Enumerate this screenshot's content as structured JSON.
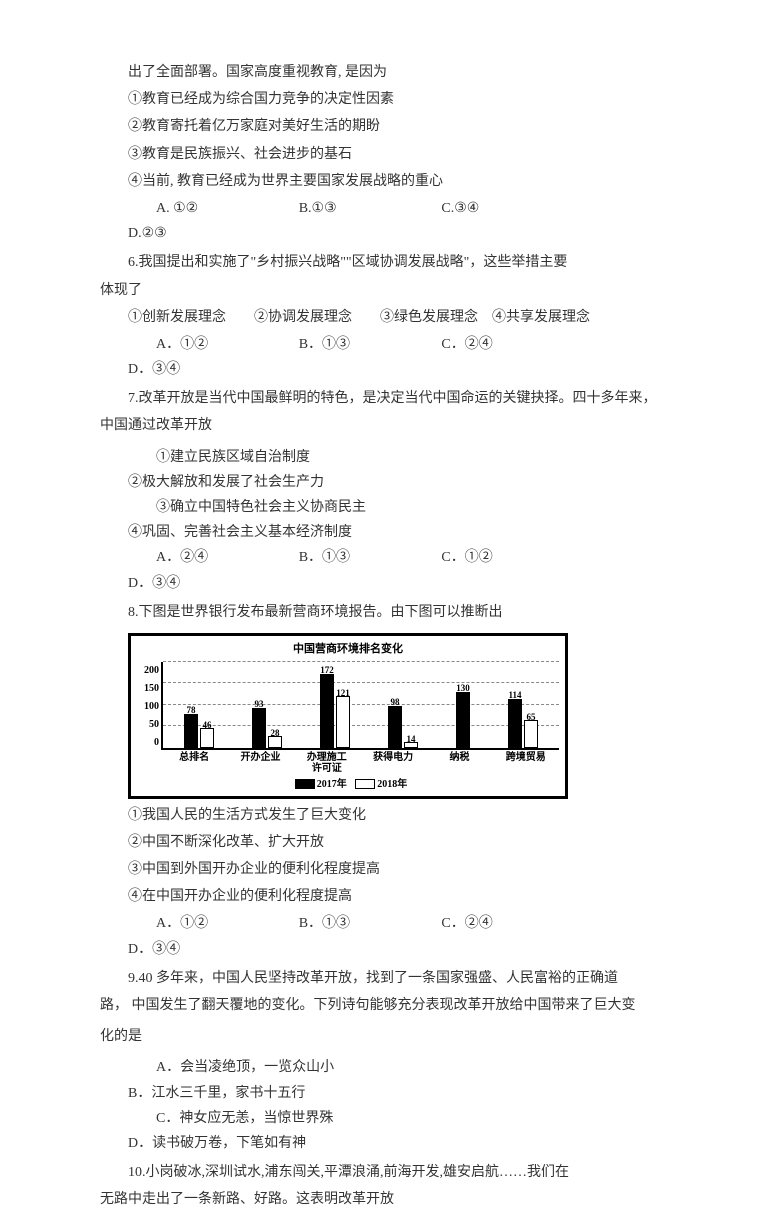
{
  "intro_tail": "出了全面部署。国家高度重视教育, 是因为",
  "q5": {
    "s1": "①教育已经成为综合国力竞争的决定性因素",
    "s2": "②教育寄托着亿万家庭对美好生活的期盼",
    "s3": "③教育是民族振兴、社会进步的基石",
    "s4": "④当前, 教育已经成为世界主要国家发展战略的重心",
    "optA": "A. ①②",
    "optB": "B.①③",
    "optC": "C.③④",
    "optD": "D.②③"
  },
  "q6": {
    "stem1": "6.我国提出和实施了\"乡村振兴战略\"\"区域协调发展战略\"，这些举措主要",
    "stem2": "体现了",
    "stmts": "①创新发展理念　　②协调发展理念　　③绿色发展理念　④共享发展理念",
    "optA": "A．①②",
    "optB": "B．①③",
    "optC": "C．②④",
    "optD": "D．③④"
  },
  "q7": {
    "stem1": "7.改革开放是当代中国最鲜明的特色，是决定当代中国命运的关键抉择。四十多年来，",
    "stem2": "中国通过改革开放",
    "row1L": "①建立民族区域自治制度",
    "row1R": "②极大解放和发展了社会生产力",
    "row2L": "③确立中国特色社会主义协商民主",
    "row2R": "④巩固、完善社会主义基本经济制度",
    "optA": "A．②④",
    "optB": "B．①③",
    "optC": "C．①②",
    "optD": "D．③④"
  },
  "q8": {
    "stem": "8.下图是世界银行发布最新营商环境报告。由下图可以推断出",
    "s1": "①我国人民的生活方式发生了巨大变化",
    "s2": "②中国不断深化改革、扩大开放",
    "s3": "③中国到外国开办企业的便利化程度提高",
    "s4": "④在中国开办企业的便利化程度提高",
    "optA": "A．①②",
    "optB": "B．①③",
    "optC": "C．②④",
    "optD": "D．③④"
  },
  "q9": {
    "stem1": "9.40 多年来，中国人民坚持改革开放，找到了一条国家强盛、人民富裕的正确道",
    "stem2": "路， 中国发生了翻天覆地的变化。下列诗句能够充分表现改革开放给中国带来了巨大变",
    "stem3": "化的是",
    "optA": "A．会当凌绝顶，一览众山小",
    "optB": "B．江水三千里，家书十五行",
    "optC": "C．神女应无恙，当惊世界殊",
    "optD": "D．读书破万卷，下笔如有神"
  },
  "q10": {
    "stem1": "10.小岗破冰,深圳试水,浦东闯关,平潭浪涌,前海开发,雄安启航……我们在",
    "stem2": "无路中走出了一条新路、好路。这表明改革开放"
  },
  "chart": {
    "title": "中国营商环境排名变化",
    "type": "bar",
    "ylim_max": 200,
    "ytick_step": 50,
    "yticks": [
      "200",
      "150",
      "100",
      "50",
      "0"
    ],
    "categories": [
      "总排名",
      "开办企业",
      "办理施工许可证",
      "获得电力",
      "纳税",
      "跨境贸易"
    ],
    "series_a_label": "2017年",
    "series_b_label": "2018年",
    "values_a": [
      78,
      93,
      172,
      98,
      130,
      114
    ],
    "values_b": [
      46,
      28,
      121,
      14,
      null,
      65
    ],
    "bar_color_a": "#000000",
    "bar_color_b": "#ffffff",
    "border_color": "#000000",
    "grid_color": "#888888",
    "background_color": "#ffffff",
    "label_fontsize": 9
  }
}
